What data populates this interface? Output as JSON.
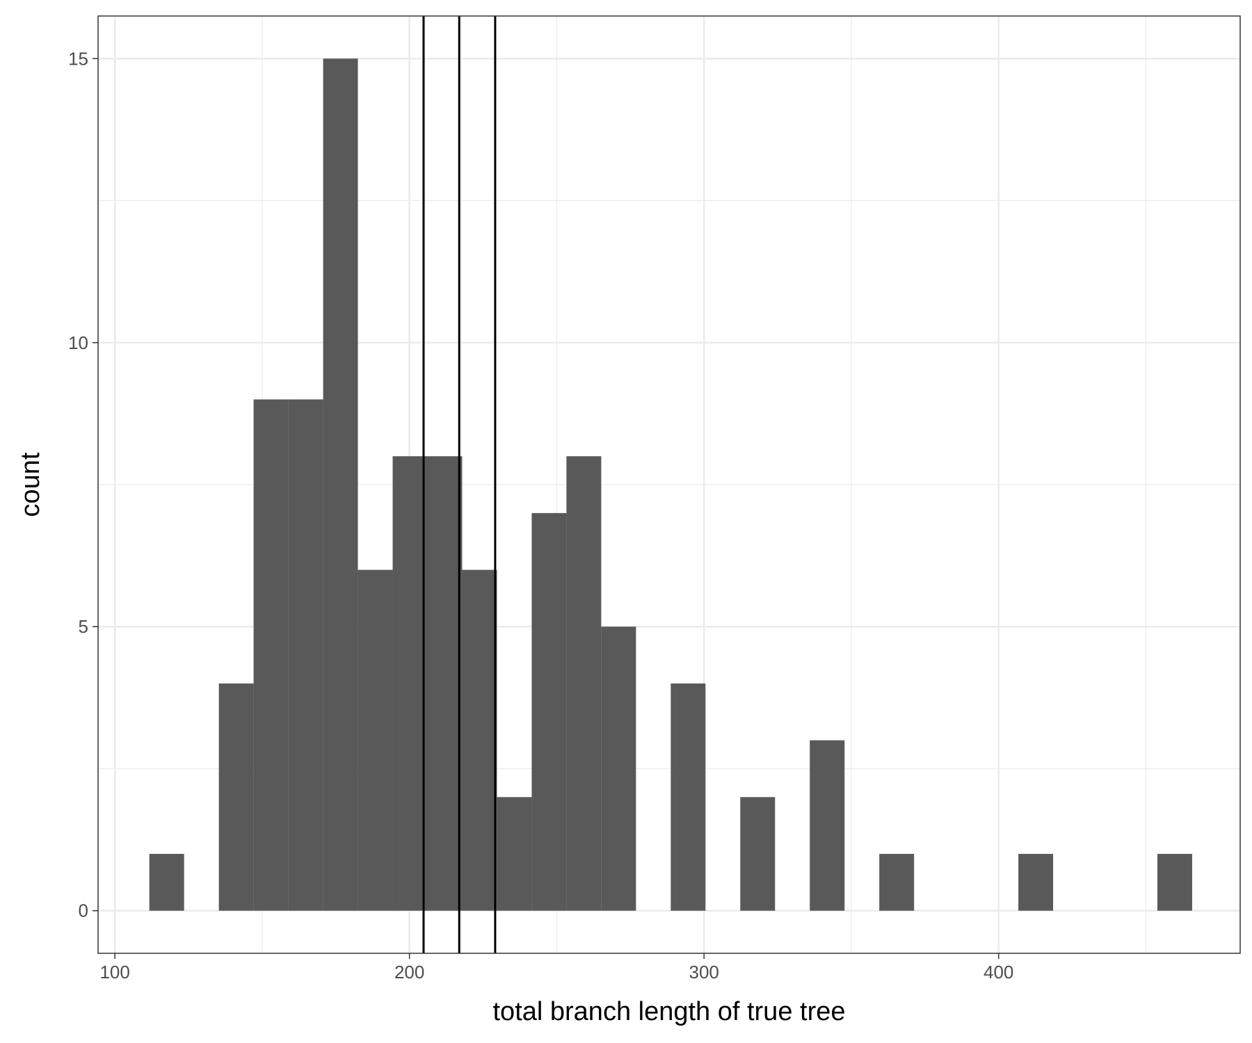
{
  "chart_data": {
    "type": "bar",
    "xlabel": "total branch length of true tree",
    "ylabel": "count",
    "xlim": [
      94.3,
      482.0
    ],
    "ylim": [
      -0.75,
      15.75
    ],
    "x_ticks": [
      100,
      200,
      300,
      400
    ],
    "y_ticks": [
      0,
      5,
      10,
      15
    ],
    "grid": true,
    "bin_width": 11.8,
    "bins": [
      {
        "xmin": 111.7,
        "xmax": 123.5,
        "count": 1
      },
      {
        "xmin": 123.5,
        "xmax": 135.3,
        "count": 0
      },
      {
        "xmin": 135.3,
        "xmax": 147.1,
        "count": 4
      },
      {
        "xmin": 147.1,
        "xmax": 158.9,
        "count": 9
      },
      {
        "xmin": 158.9,
        "xmax": 170.7,
        "count": 9
      },
      {
        "xmin": 170.7,
        "xmax": 182.5,
        "count": 15
      },
      {
        "xmin": 182.5,
        "xmax": 194.3,
        "count": 6
      },
      {
        "xmin": 194.3,
        "xmax": 206.1,
        "count": 8
      },
      {
        "xmin": 206.1,
        "xmax": 217.9,
        "count": 8
      },
      {
        "xmin": 217.9,
        "xmax": 229.7,
        "count": 6
      },
      {
        "xmin": 229.7,
        "xmax": 241.5,
        "count": 2
      },
      {
        "xmin": 241.5,
        "xmax": 253.3,
        "count": 7
      },
      {
        "xmin": 253.3,
        "xmax": 265.1,
        "count": 8
      },
      {
        "xmin": 265.1,
        "xmax": 276.9,
        "count": 5
      },
      {
        "xmin": 276.9,
        "xmax": 288.7,
        "count": 0
      },
      {
        "xmin": 288.7,
        "xmax": 300.5,
        "count": 4
      },
      {
        "xmin": 300.5,
        "xmax": 312.3,
        "count": 0
      },
      {
        "xmin": 312.3,
        "xmax": 324.1,
        "count": 2
      },
      {
        "xmin": 324.1,
        "xmax": 335.9,
        "count": 0
      },
      {
        "xmin": 335.9,
        "xmax": 347.7,
        "count": 3
      },
      {
        "xmin": 347.7,
        "xmax": 359.5,
        "count": 0
      },
      {
        "xmin": 359.5,
        "xmax": 371.3,
        "count": 1
      },
      {
        "xmin": 371.3,
        "xmax": 383.1,
        "count": 0
      },
      {
        "xmin": 383.1,
        "xmax": 394.9,
        "count": 0
      },
      {
        "xmin": 394.9,
        "xmax": 406.7,
        "count": 0
      },
      {
        "xmin": 406.7,
        "xmax": 418.5,
        "count": 1
      },
      {
        "xmin": 418.5,
        "xmax": 430.3,
        "count": 0
      },
      {
        "xmin": 430.3,
        "xmax": 442.1,
        "count": 0
      },
      {
        "xmin": 442.1,
        "xmax": 453.9,
        "count": 0
      },
      {
        "xmin": 453.9,
        "xmax": 465.7,
        "count": 1
      }
    ],
    "vlines": [
      204.8,
      216.9,
      229.1
    ],
    "bar_color": "#595959",
    "vline_color": "#000000",
    "grid_color": "#ebebeb"
  }
}
